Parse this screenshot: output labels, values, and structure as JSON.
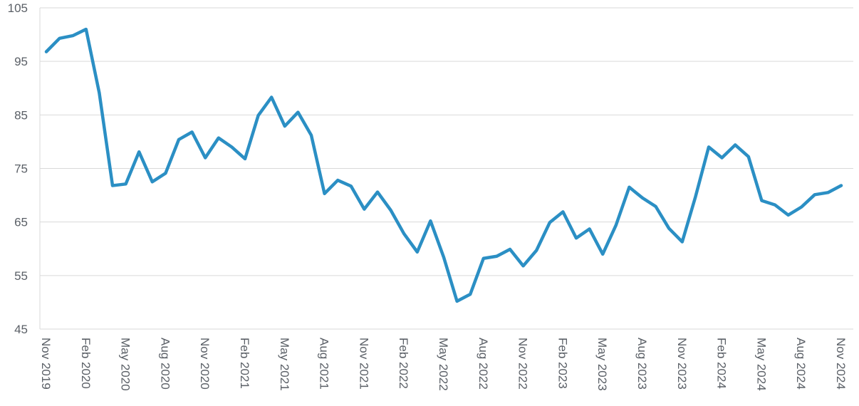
{
  "chart_data": {
    "type": "line",
    "title": "",
    "xlabel": "",
    "ylabel": "",
    "ylim": [
      45,
      105
    ],
    "yticks": [
      "105",
      "95",
      "85",
      "75",
      "65",
      "55",
      "45"
    ],
    "grid": true,
    "legend": "none",
    "colors": {
      "line": "#2b8fc4",
      "grid": "#d9d9d9",
      "tick_text": "#5a5f66"
    },
    "x": [
      "Nov 2019",
      "Dec 2019",
      "Jan 2020",
      "Feb 2020",
      "Mar 2020",
      "Apr 2020",
      "May 2020",
      "Jun 2020",
      "Jul 2020",
      "Aug 2020",
      "Sep 2020",
      "Oct 2020",
      "Nov 2020",
      "Dec 2020",
      "Jan 2021",
      "Feb 2021",
      "Mar 2021",
      "Apr 2021",
      "May 2021",
      "Jun 2021",
      "Jul 2021",
      "Aug 2021",
      "Sep 2021",
      "Oct 2021",
      "Nov 2021",
      "Dec 2021",
      "Jan 2022",
      "Feb 2022",
      "Mar 2022",
      "Apr 2022",
      "May 2022",
      "Jun 2022",
      "Jul 2022",
      "Aug 2022",
      "Sep 2022",
      "Oct 2022",
      "Nov 2022",
      "Dec 2022",
      "Jan 2023",
      "Feb 2023",
      "Mar 2023",
      "Apr 2023",
      "May 2023",
      "Jun 2023",
      "Jul 2023",
      "Aug 2023",
      "Sep 2023",
      "Oct 2023",
      "Nov 2023",
      "Dec 2023",
      "Jan 2024",
      "Feb 2024",
      "Mar 2024",
      "Apr 2024",
      "May 2024",
      "Jun 2024",
      "Jul 2024",
      "Aug 2024",
      "Sep 2024",
      "Oct 2024",
      "Nov 2024"
    ],
    "xtick_labels": [
      "Nov 2019",
      "Feb 2020",
      "May 2020",
      "Aug 2020",
      "Nov 2020",
      "Feb 2021",
      "May 2021",
      "Aug 2021",
      "Nov 2021",
      "Feb 2022",
      "May 2022",
      "Aug 2022",
      "Nov 2022",
      "Feb 2023",
      "May 2023",
      "Aug 2023",
      "Nov 2023",
      "Feb 2024",
      "May 2024",
      "Aug 2024",
      "Nov 2024"
    ],
    "series": [
      {
        "values": [
          96.8,
          99.3,
          99.8,
          101.0,
          89.1,
          71.8,
          72.1,
          78.1,
          72.5,
          74.1,
          80.4,
          81.8,
          77.0,
          80.7,
          79.0,
          76.8,
          84.9,
          88.3,
          82.9,
          85.5,
          81.2,
          70.3,
          72.8,
          71.7,
          67.4,
          70.6,
          67.2,
          62.8,
          59.4,
          65.2,
          58.4,
          50.2,
          51.5,
          58.2,
          58.6,
          59.9,
          56.8,
          59.7,
          64.9,
          66.9,
          62.0,
          63.7,
          59.0,
          64.4,
          71.5,
          69.5,
          67.9,
          63.8,
          61.3,
          69.7,
          79.0,
          77.0,
          79.4,
          77.2,
          69.0,
          68.2,
          66.3,
          67.8,
          70.1,
          70.5,
          71.8
        ]
      }
    ]
  }
}
